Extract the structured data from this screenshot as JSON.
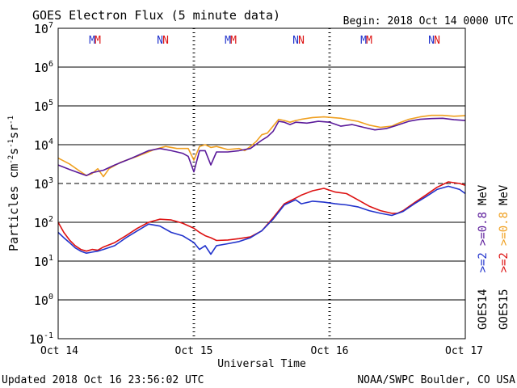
{
  "header": {
    "title": "GOES Electron Flux (5 minute data)",
    "begin": "Begin: 2018 Oct 14 0000 UTC"
  },
  "footer": {
    "updated": "Updated 2018 Oct 16 23:56:02 UTC",
    "credit": "NOAA/SWPC Boulder, CO USA"
  },
  "legend": {
    "goes14_label": "GOES14",
    "goes14_gt2": ">=2",
    "goes14_gt08": ">=0.8",
    "goes14_unit": "MeV",
    "goes15_label": "GOES15",
    "goes15_gt2": ">=2",
    "goes15_gt08": ">=0.8",
    "goes15_unit": "MeV"
  },
  "chart_data": {
    "type": "line",
    "title": "GOES Electron Flux (5 minute data)",
    "xlabel": "Universal Time",
    "ylabel_parts": [
      "Particles cm",
      "-2",
      "s",
      "-1",
      "sr",
      "-1"
    ],
    "y_scale": "log",
    "ylim": [
      0.1,
      10000000
    ],
    "y_ticks": [
      {
        "value": 10000000,
        "base": "10",
        "exp": "7"
      },
      {
        "value": 1000000,
        "base": "10",
        "exp": "6"
      },
      {
        "value": 100000,
        "base": "10",
        "exp": "5"
      },
      {
        "value": 10000,
        "base": "10",
        "exp": "4"
      },
      {
        "value": 1000,
        "base": "10",
        "exp": "3"
      },
      {
        "value": 100,
        "base": "10",
        "exp": "2"
      },
      {
        "value": 10,
        "base": "10",
        "exp": "1"
      },
      {
        "value": 1,
        "base": "10",
        "exp": "0"
      },
      {
        "value": 0.1,
        "base": "10",
        "exp": "-1"
      }
    ],
    "xlim": [
      "2018-10-14 00:00",
      "2018-10-17 00:00"
    ],
    "x_ticks": [
      {
        "date": "2018-10-14",
        "label": "Oct 14"
      },
      {
        "date": "2018-10-15",
        "label": "Oct 15"
      },
      {
        "date": "2018-10-16",
        "label": "Oct 16"
      },
      {
        "date": "2018-10-17",
        "label": "Oct 17"
      }
    ],
    "threshold": {
      "value": 1000,
      "style": "dashed"
    },
    "grid": true,
    "markers": [
      {
        "time": "2018-10-14 06:00",
        "letter": "M",
        "color": "#2233cc"
      },
      {
        "time": "2018-10-14 07:00",
        "letter": "M",
        "color": "#dd1111"
      },
      {
        "time": "2018-10-14 18:00",
        "letter": "N",
        "color": "#2233cc"
      },
      {
        "time": "2018-10-14 19:00",
        "letter": "N",
        "color": "#dd1111"
      },
      {
        "time": "2018-10-15 06:00",
        "letter": "M",
        "color": "#2233cc"
      },
      {
        "time": "2018-10-15 07:00",
        "letter": "M",
        "color": "#dd1111"
      },
      {
        "time": "2018-10-15 18:00",
        "letter": "N",
        "color": "#2233cc"
      },
      {
        "time": "2018-10-15 19:00",
        "letter": "N",
        "color": "#dd1111"
      },
      {
        "time": "2018-10-16 06:00",
        "letter": "M",
        "color": "#2233cc"
      },
      {
        "time": "2018-10-16 07:00",
        "letter": "M",
        "color": "#dd1111"
      },
      {
        "time": "2018-10-16 18:00",
        "letter": "N",
        "color": "#2233cc"
      },
      {
        "time": "2018-10-16 19:00",
        "letter": "N",
        "color": "#dd1111"
      }
    ],
    "series": [
      {
        "name": "GOES15 >=0.8 MeV",
        "color": "#f0a020",
        "points": [
          [
            "2018-10-14 00:00",
            4500
          ],
          [
            "2018-10-14 02:00",
            3200
          ],
          [
            "2018-10-14 04:00",
            2000
          ],
          [
            "2018-10-14 05:00",
            1600
          ],
          [
            "2018-10-14 06:00",
            1800
          ],
          [
            "2018-10-14 07:00",
            2400
          ],
          [
            "2018-10-14 08:00",
            1500
          ],
          [
            "2018-10-14 09:00",
            2400
          ],
          [
            "2018-10-14 11:00",
            3500
          ],
          [
            "2018-10-14 14:00",
            5000
          ],
          [
            "2018-10-14 17:00",
            7500
          ],
          [
            "2018-10-14 19:00",
            9000
          ],
          [
            "2018-10-14 21:00",
            8000
          ],
          [
            "2018-10-14 23:00",
            8000
          ],
          [
            "2018-10-15 00:00",
            4000
          ],
          [
            "2018-10-15 01:00",
            9000
          ],
          [
            "2018-10-15 02:00",
            10000
          ],
          [
            "2018-10-15 03:00",
            8500
          ],
          [
            "2018-10-15 04:00",
            9000
          ],
          [
            "2018-10-15 06:00",
            7500
          ],
          [
            "2018-10-15 08:00",
            8000
          ],
          [
            "2018-10-15 09:00",
            7000
          ],
          [
            "2018-10-15 10:00",
            9000
          ],
          [
            "2018-10-15 11:00",
            12000
          ],
          [
            "2018-10-15 12:00",
            18000
          ],
          [
            "2018-10-15 13:00",
            20000
          ],
          [
            "2018-10-15 14:00",
            30000
          ],
          [
            "2018-10-15 15:00",
            45000
          ],
          [
            "2018-10-15 16:00",
            42000
          ],
          [
            "2018-10-15 17:00",
            38000
          ],
          [
            "2018-10-15 18:00",
            42000
          ],
          [
            "2018-10-15 19:00",
            45000
          ],
          [
            "2018-10-15 21:00",
            50000
          ],
          [
            "2018-10-15 23:00",
            52000
          ],
          [
            "2018-10-16 02:00",
            48000
          ],
          [
            "2018-10-16 05:00",
            40000
          ],
          [
            "2018-10-16 07:00",
            32000
          ],
          [
            "2018-10-16 09:00",
            28000
          ],
          [
            "2018-10-16 11:00",
            30000
          ],
          [
            "2018-10-16 12:00",
            35000
          ],
          [
            "2018-10-16 14:00",
            45000
          ],
          [
            "2018-10-16 16:00",
            52000
          ],
          [
            "2018-10-16 18:00",
            57000
          ],
          [
            "2018-10-16 20:00",
            57000
          ],
          [
            "2018-10-16 22:00",
            54000
          ],
          [
            "2018-10-17 00:00",
            56000
          ]
        ]
      },
      {
        "name": "GOES14 >=0.8 MeV",
        "color": "#5a1a9a",
        "points": [
          [
            "2018-10-14 00:00",
            3000
          ],
          [
            "2018-10-14 02:00",
            2300
          ],
          [
            "2018-10-14 04:00",
            1800
          ],
          [
            "2018-10-14 05:00",
            1600
          ],
          [
            "2018-10-14 06:00",
            1900
          ],
          [
            "2018-10-14 08:00",
            2200
          ],
          [
            "2018-10-14 10:00",
            3000
          ],
          [
            "2018-10-14 13:00",
            4500
          ],
          [
            "2018-10-14 16:00",
            7000
          ],
          [
            "2018-10-14 18:00",
            8000
          ],
          [
            "2018-10-14 20:00",
            7000
          ],
          [
            "2018-10-14 22:00",
            6000
          ],
          [
            "2018-10-14 23:00",
            5000
          ],
          [
            "2018-10-15 00:00",
            2000
          ],
          [
            "2018-10-15 01:00",
            7000
          ],
          [
            "2018-10-15 02:00",
            7000
          ],
          [
            "2018-10-15 03:00",
            3000
          ],
          [
            "2018-10-15 04:00",
            6500
          ],
          [
            "2018-10-15 06:00",
            6500
          ],
          [
            "2018-10-15 08:00",
            7000
          ],
          [
            "2018-10-15 10:00",
            8000
          ],
          [
            "2018-10-15 12:00",
            13000
          ],
          [
            "2018-10-15 13:00",
            16000
          ],
          [
            "2018-10-15 14:00",
            22000
          ],
          [
            "2018-10-15 15:00",
            40000
          ],
          [
            "2018-10-15 16:00",
            38000
          ],
          [
            "2018-10-15 17:00",
            33000
          ],
          [
            "2018-10-15 18:00",
            38000
          ],
          [
            "2018-10-15 20:00",
            36000
          ],
          [
            "2018-10-15 22:00",
            40000
          ],
          [
            "2018-10-16 00:00",
            38000
          ],
          [
            "2018-10-16 02:00",
            30000
          ],
          [
            "2018-10-16 04:00",
            33000
          ],
          [
            "2018-10-16 06:00",
            28000
          ],
          [
            "2018-10-16 08:00",
            24000
          ],
          [
            "2018-10-16 10:00",
            26000
          ],
          [
            "2018-10-16 12:00",
            32000
          ],
          [
            "2018-10-16 14:00",
            40000
          ],
          [
            "2018-10-16 16:00",
            45000
          ],
          [
            "2018-10-16 18:00",
            47000
          ],
          [
            "2018-10-16 20:00",
            48000
          ],
          [
            "2018-10-16 22:00",
            44000
          ],
          [
            "2018-10-17 00:00",
            42000
          ]
        ]
      },
      {
        "name": "GOES15 >=2 MeV",
        "color": "#dd1111",
        "points": [
          [
            "2018-10-14 00:00",
            100
          ],
          [
            "2018-10-14 01:00",
            55
          ],
          [
            "2018-10-14 02:00",
            35
          ],
          [
            "2018-10-14 03:00",
            25
          ],
          [
            "2018-10-14 04:00",
            20
          ],
          [
            "2018-10-14 05:00",
            18
          ],
          [
            "2018-10-14 06:00",
            20
          ],
          [
            "2018-10-14 07:00",
            19
          ],
          [
            "2018-10-14 08:00",
            23
          ],
          [
            "2018-10-14 10:00",
            30
          ],
          [
            "2018-10-14 12:00",
            45
          ],
          [
            "2018-10-14 14:00",
            70
          ],
          [
            "2018-10-14 16:00",
            100
          ],
          [
            "2018-10-14 18:00",
            120
          ],
          [
            "2018-10-14 20:00",
            115
          ],
          [
            "2018-10-14 22:00",
            95
          ],
          [
            "2018-10-15 00:00",
            70
          ],
          [
            "2018-10-15 01:00",
            55
          ],
          [
            "2018-10-15 02:00",
            45
          ],
          [
            "2018-10-15 03:00",
            40
          ],
          [
            "2018-10-15 04:00",
            34
          ],
          [
            "2018-10-15 06:00",
            35
          ],
          [
            "2018-10-15 08:00",
            38
          ],
          [
            "2018-10-15 10:00",
            42
          ],
          [
            "2018-10-15 12:00",
            60
          ],
          [
            "2018-10-15 14:00",
            130
          ],
          [
            "2018-10-15 16:00",
            300
          ],
          [
            "2018-10-15 18:00",
            420
          ],
          [
            "2018-10-15 19:00",
            500
          ],
          [
            "2018-10-15 21:00",
            650
          ],
          [
            "2018-10-15 23:00",
            750
          ],
          [
            "2018-10-16 01:00",
            600
          ],
          [
            "2018-10-16 03:00",
            550
          ],
          [
            "2018-10-16 05:00",
            380
          ],
          [
            "2018-10-16 07:00",
            260
          ],
          [
            "2018-10-16 09:00",
            200
          ],
          [
            "2018-10-16 11:00",
            170
          ],
          [
            "2018-10-16 12:00",
            170
          ],
          [
            "2018-10-16 13:00",
            200
          ],
          [
            "2018-10-16 15:00",
            320
          ],
          [
            "2018-10-16 17:00",
            500
          ],
          [
            "2018-10-16 19:00",
            800
          ],
          [
            "2018-10-16 21:00",
            1100
          ],
          [
            "2018-10-16 23:00",
            1000
          ],
          [
            "2018-10-17 00:00",
            900
          ]
        ]
      },
      {
        "name": "GOES14 >=2 MeV",
        "color": "#2233cc",
        "points": [
          [
            "2018-10-14 00:00",
            55
          ],
          [
            "2018-10-14 01:00",
            40
          ],
          [
            "2018-10-14 02:00",
            30
          ],
          [
            "2018-10-14 03:00",
            22
          ],
          [
            "2018-10-14 04:00",
            18
          ],
          [
            "2018-10-14 05:00",
            16
          ],
          [
            "2018-10-14 06:00",
            17
          ],
          [
            "2018-10-14 07:00",
            18
          ],
          [
            "2018-10-14 08:00",
            20
          ],
          [
            "2018-10-14 10:00",
            25
          ],
          [
            "2018-10-14 12:00",
            40
          ],
          [
            "2018-10-14 14:00",
            60
          ],
          [
            "2018-10-14 16:00",
            90
          ],
          [
            "2018-10-14 18:00",
            80
          ],
          [
            "2018-10-14 20:00",
            55
          ],
          [
            "2018-10-14 22:00",
            45
          ],
          [
            "2018-10-15 00:00",
            30
          ],
          [
            "2018-10-15 01:00",
            20
          ],
          [
            "2018-10-15 02:00",
            25
          ],
          [
            "2018-10-15 03:00",
            15
          ],
          [
            "2018-10-15 04:00",
            25
          ],
          [
            "2018-10-15 06:00",
            28
          ],
          [
            "2018-10-15 08:00",
            32
          ],
          [
            "2018-10-15 10:00",
            40
          ],
          [
            "2018-10-15 12:00",
            60
          ],
          [
            "2018-10-15 14:00",
            120
          ],
          [
            "2018-10-15 16:00",
            280
          ],
          [
            "2018-10-15 18:00",
            380
          ],
          [
            "2018-10-15 19:00",
            300
          ],
          [
            "2018-10-15 21:00",
            350
          ],
          [
            "2018-10-15 23:00",
            330
          ],
          [
            "2018-10-16 01:00",
            300
          ],
          [
            "2018-10-16 03:00",
            280
          ],
          [
            "2018-10-16 05:00",
            250
          ],
          [
            "2018-10-16 07:00",
            200
          ],
          [
            "2018-10-16 09:00",
            170
          ],
          [
            "2018-10-16 11:00",
            150
          ],
          [
            "2018-10-16 13:00",
            190
          ],
          [
            "2018-10-16 15:00",
            300
          ],
          [
            "2018-10-16 17:00",
            450
          ],
          [
            "2018-10-16 19:00",
            700
          ],
          [
            "2018-10-16 21:00",
            850
          ],
          [
            "2018-10-16 23:00",
            700
          ],
          [
            "2018-10-17 00:00",
            550
          ]
        ]
      }
    ]
  }
}
